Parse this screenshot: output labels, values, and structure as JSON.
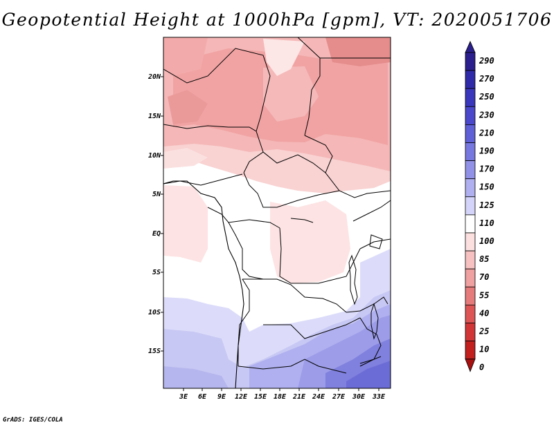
{
  "title": "Geopotential Height at 1000hPa [gpm], VT: 2020051706",
  "credit": "GrADS: IGES/COLA",
  "map": {
    "variable": "Geopotential Height",
    "level": "1000hPa",
    "units": "gpm",
    "valid_time": "2020051706",
    "lon_labels": [
      "3E",
      "6E",
      "9E",
      "12E",
      "15E",
      "18E",
      "21E",
      "24E",
      "27E",
      "30E",
      "33E"
    ],
    "lat_labels": [
      "20N",
      "15N",
      "10N",
      "5N",
      "EQ",
      "5S",
      "10S",
      "15S"
    ]
  },
  "colorbar": {
    "labels": [
      "290",
      "270",
      "250",
      "230",
      "210",
      "190",
      "170",
      "150",
      "125",
      "110",
      "100",
      "85",
      "70",
      "55",
      "40",
      "25",
      "10",
      "0"
    ],
    "colors": [
      "#2a1f8c",
      "#2f2aa8",
      "#3a37bd",
      "#4b48cc",
      "#5f5fd6",
      "#7777e0",
      "#9191e8",
      "#b0b0f0",
      "#d4d4fa",
      "#ffffff",
      "#fce0e0",
      "#f7c1c1",
      "#efa0a0",
      "#e57b7b",
      "#dd5555",
      "#d23535",
      "#c21f1f",
      "#a81010"
    ]
  }
}
